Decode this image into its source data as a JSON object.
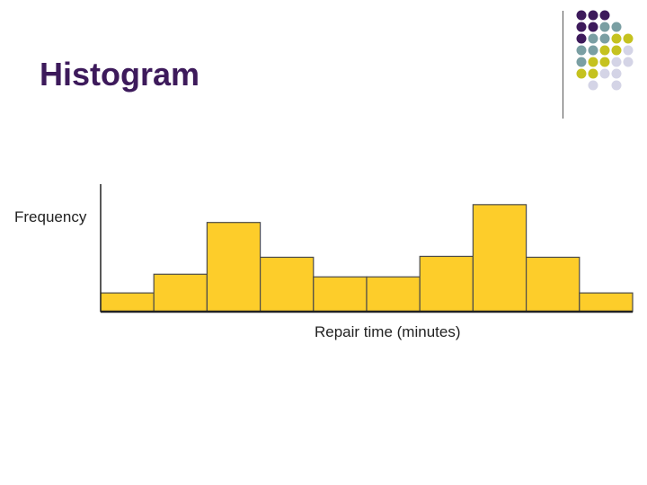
{
  "slide": {
    "title": "Histogram"
  },
  "decoration": {
    "dot_colors": {
      "purple": "#3d1a5b",
      "teal": "#7a9fa3",
      "olive": "#c5c21f",
      "lavender": "#d4d4e6"
    },
    "dot_grid": [
      [
        "purple",
        "purple",
        "purple",
        "",
        ""
      ],
      [
        "purple",
        "purple",
        "teal",
        "teal",
        ""
      ],
      [
        "purple",
        "teal",
        "teal",
        "olive",
        "olive"
      ],
      [
        "teal",
        "teal",
        "olive",
        "olive",
        "lavender"
      ],
      [
        "teal",
        "olive",
        "olive",
        "lavender",
        "lavender"
      ],
      [
        "olive",
        "olive",
        "lavender",
        "lavender",
        ""
      ],
      [
        "",
        "lavender",
        "",
        "lavender",
        ""
      ]
    ]
  },
  "chart_data": {
    "type": "bar",
    "title": "",
    "xlabel": "Repair time (minutes)",
    "ylabel": "Frequency",
    "categories": [
      "",
      "",
      "",
      "",
      "",
      "",
      "",
      "",
      "",
      ""
    ],
    "values": [
      21,
      42,
      100,
      61,
      39,
      39,
      62,
      120,
      61,
      21
    ],
    "ylim": [
      0,
      143
    ],
    "grid": false,
    "legend": "none",
    "bar_color": "#fdcd2a",
    "bar_edge_color": "#4a4a4a"
  }
}
